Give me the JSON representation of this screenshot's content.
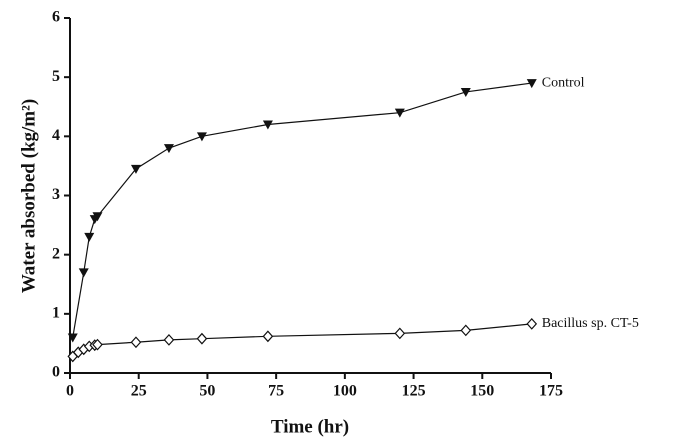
{
  "chart_data": {
    "type": "line",
    "xlabel": "Time (hr)",
    "ylabel": "Water absorbed (kg/m²)",
    "xlim": [
      0,
      175
    ],
    "xticks": [
      0,
      25,
      50,
      75,
      100,
      125,
      150,
      175
    ],
    "ylim": [
      0,
      6
    ],
    "yticks": [
      0,
      1,
      2,
      3,
      4,
      5,
      6
    ],
    "series": [
      {
        "name": "Control",
        "color": "#111111",
        "marker": "triangle-down",
        "x": [
          1,
          5,
          7,
          9,
          10,
          24,
          36,
          48,
          72,
          120,
          144,
          168
        ],
        "values": [
          0.6,
          1.7,
          2.3,
          2.6,
          2.65,
          3.45,
          3.8,
          4.0,
          4.2,
          4.4,
          4.75,
          4.9
        ]
      },
      {
        "name": "Bacillus sp. CT-5",
        "color": "#111111",
        "marker": "diamond",
        "x": [
          1,
          3,
          5,
          7,
          9,
          10,
          24,
          36,
          48,
          72,
          120,
          144,
          168
        ],
        "values": [
          0.28,
          0.35,
          0.4,
          0.45,
          0.47,
          0.48,
          0.52,
          0.56,
          0.58,
          0.62,
          0.67,
          0.72,
          0.83
        ]
      }
    ]
  }
}
